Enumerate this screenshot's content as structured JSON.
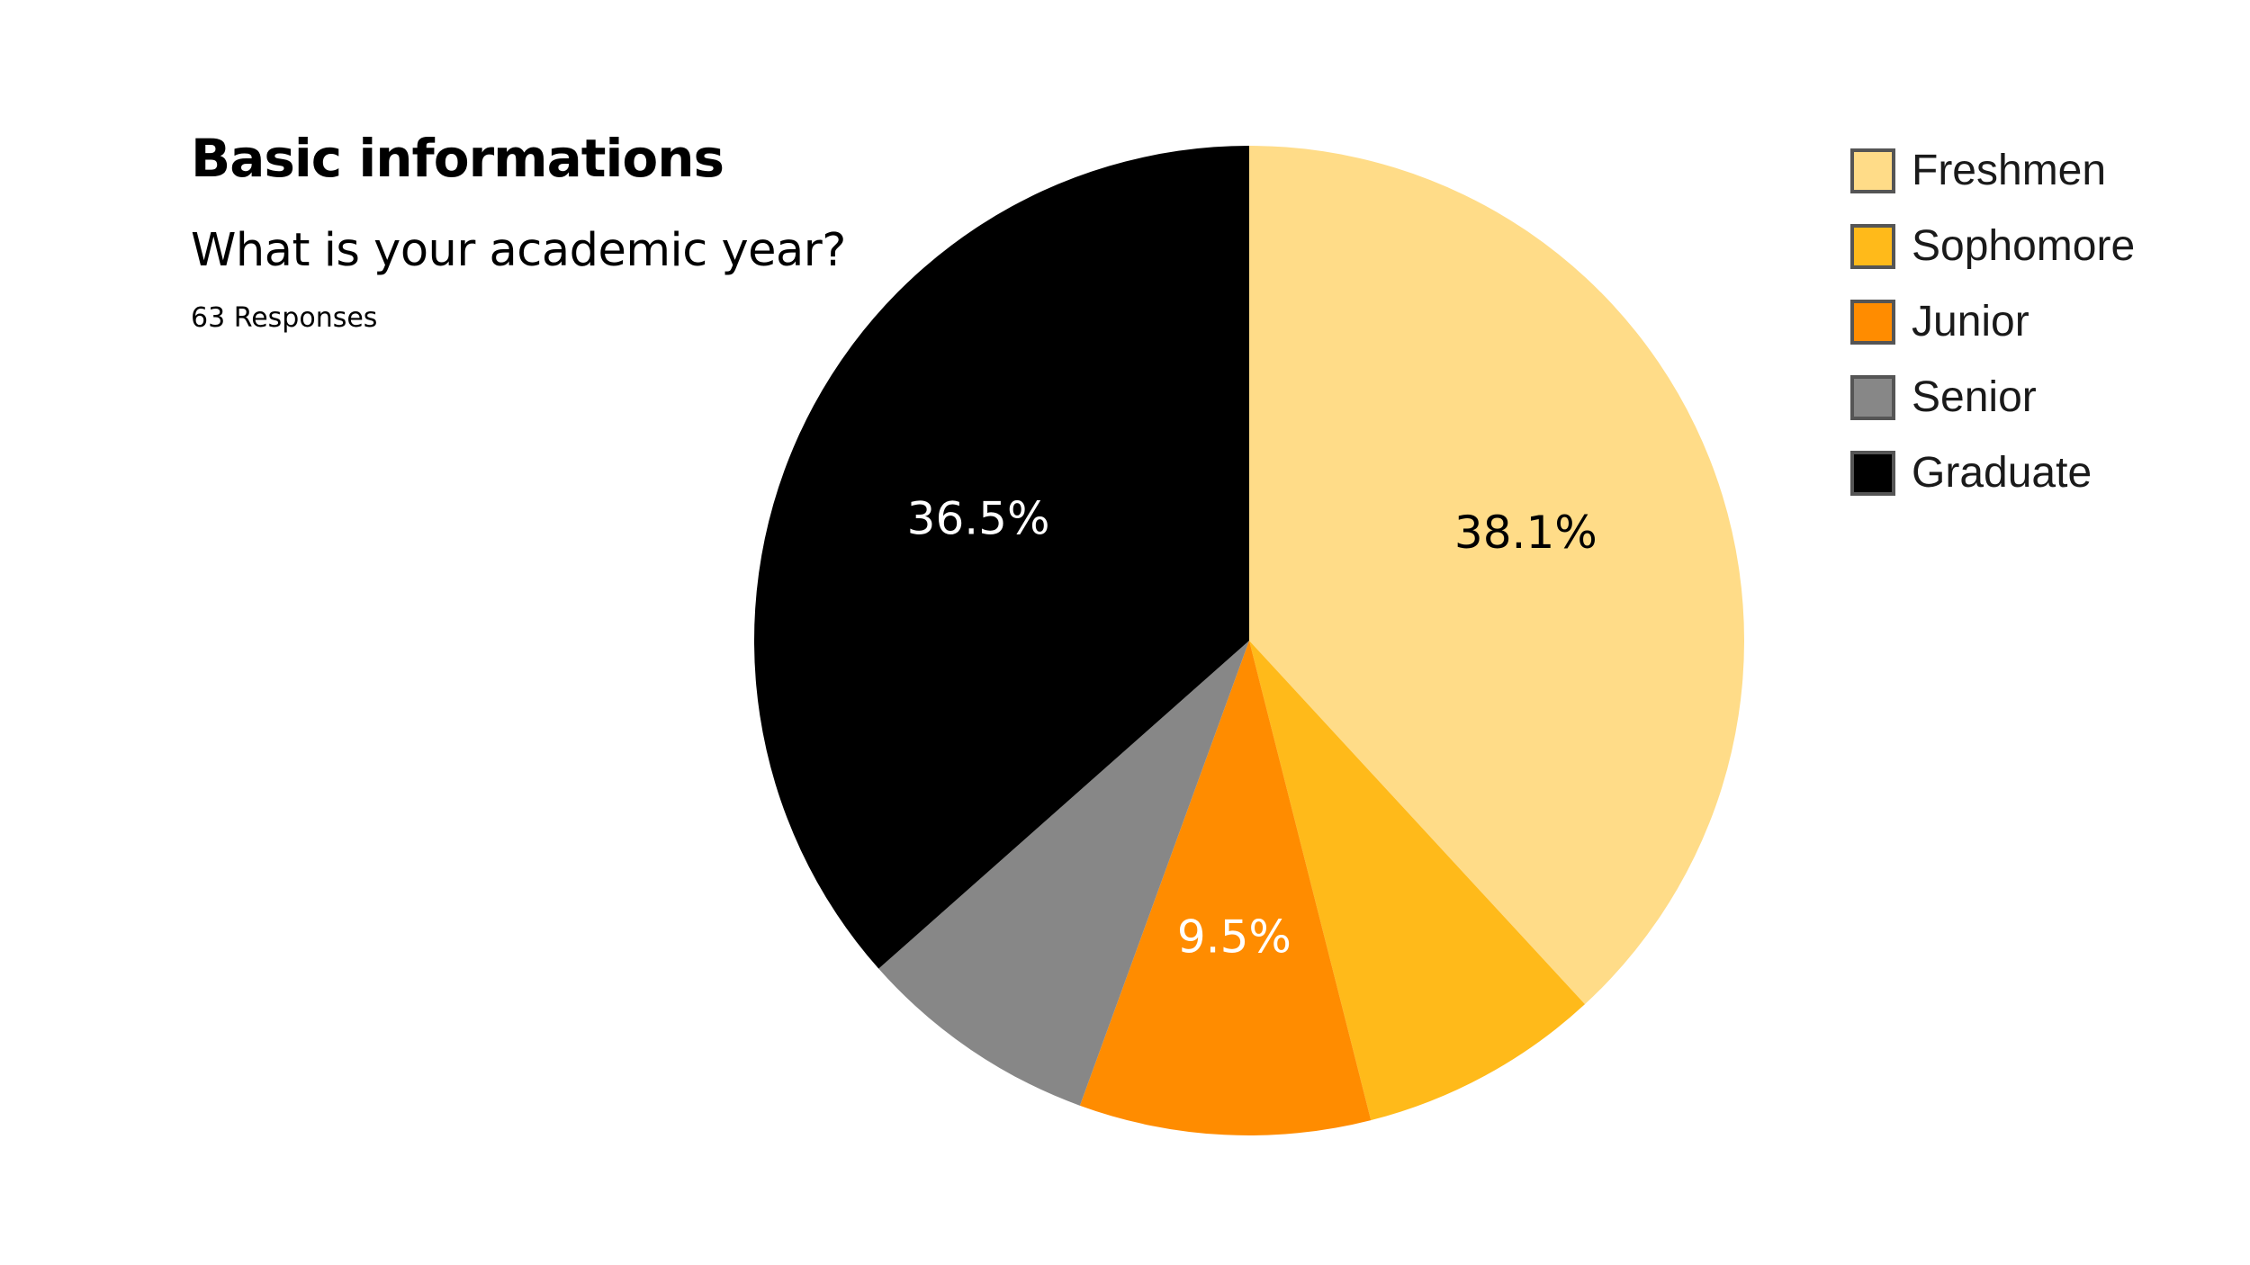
{
  "header": {
    "section_title": "Basic informations",
    "question": "What is your academic year?",
    "responses": "63 Responses"
  },
  "chart_data": {
    "type": "pie",
    "categories": [
      "Freshmen",
      "Sophomore",
      "Junior",
      "Senior",
      "Graduate"
    ],
    "values": [
      38.1,
      7.9,
      9.5,
      7.9,
      36.5
    ],
    "data_labels": [
      "38.1%",
      "",
      "9.5%",
      "",
      "36.5%"
    ],
    "colors": [
      "#FFDC88",
      "#FFBA1A",
      "#FF8C00",
      "#878787",
      "#000000"
    ],
    "label_colors": [
      "#000000",
      "#000000",
      "#ffffff",
      "#ffffff",
      "#ffffff"
    ],
    "legend_position": "top-right",
    "start": "12 o'clock",
    "direction": "clockwise"
  }
}
